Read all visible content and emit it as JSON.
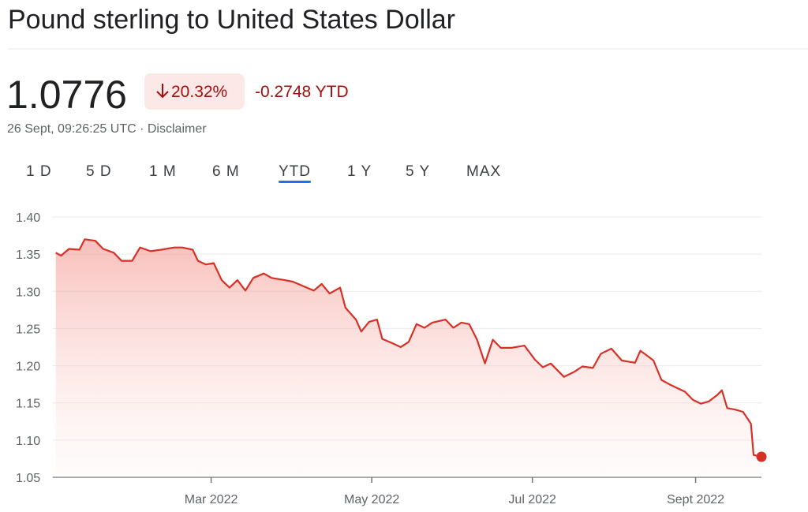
{
  "header": {
    "title": "Pound sterling to United States Dollar",
    "price": "1.0776",
    "change_percent": "20.32%",
    "change_abs": "-0.2748 YTD",
    "timestamp": "26 Sept, 09:26:25 UTC · Disclaimer"
  },
  "tabs": [
    "1 D",
    "5 D",
    "1 M",
    "6 M",
    "YTD",
    "1 Y",
    "5 Y",
    "MAX"
  ],
  "chart_data": {
    "type": "line",
    "color": "#d93025",
    "grid": true,
    "x": [
      0,
      2,
      5,
      9,
      11,
      15,
      18,
      22,
      25,
      29,
      32,
      36,
      40,
      45,
      48,
      52,
      54,
      57,
      60,
      63,
      66,
      69,
      72,
      75,
      79,
      82,
      87,
      90,
      94,
      98,
      101,
      104,
      108,
      110,
      114,
      116,
      119,
      122,
      124,
      128,
      131,
      134,
      137,
      140,
      143,
      148,
      151,
      154,
      157,
      160,
      163,
      166,
      169,
      173,
      178,
      182,
      185,
      188,
      193,
      197,
      200,
      204,
      207,
      211,
      215,
      220,
      222,
      224,
      227,
      230,
      233,
      236,
      239,
      242,
      245,
      248,
      251,
      253,
      255,
      258,
      261,
      264,
      265,
      268
    ],
    "values": [
      1.352,
      1.348,
      1.357,
      1.356,
      1.37,
      1.368,
      1.357,
      1.352,
      1.341,
      1.341,
      1.359,
      1.354,
      1.356,
      1.359,
      1.359,
      1.356,
      1.341,
      1.336,
      1.338,
      1.315,
      1.305,
      1.315,
      1.301,
      1.318,
      1.324,
      1.318,
      1.315,
      1.313,
      1.307,
      1.301,
      1.31,
      1.297,
      1.305,
      1.278,
      1.262,
      1.246,
      1.259,
      1.262,
      1.236,
      1.23,
      1.225,
      1.232,
      1.256,
      1.251,
      1.258,
      1.262,
      1.251,
      1.258,
      1.256,
      1.235,
      1.203,
      1.235,
      1.224,
      1.224,
      1.227,
      1.208,
      1.198,
      1.203,
      1.185,
      1.192,
      1.199,
      1.197,
      1.216,
      1.223,
      1.207,
      1.204,
      1.22,
      1.215,
      1.207,
      1.181,
      1.175,
      1.17,
      1.165,
      1.154,
      1.149,
      1.152,
      1.16,
      1.167,
      1.143,
      1.141,
      1.138,
      1.122,
      1.08,
      1.0776
    ],
    "xlim": [
      0,
      268
    ],
    "xticks": [
      {
        "value": 59,
        "label": "Mar 2022"
      },
      {
        "value": 120,
        "label": "May 2022"
      },
      {
        "value": 181,
        "label": "Jul 2022"
      },
      {
        "value": 243,
        "label": "Sept 2022"
      }
    ],
    "ylim": [
      1.05,
      1.4
    ],
    "yticks": [
      1.05,
      {
        "value": 1.1,
        "label": "1.10"
      },
      1.15,
      {
        "value": 1.2,
        "label": "1.20"
      },
      1.25,
      {
        "value": 1.3,
        "label": "1.30"
      },
      1.35,
      {
        "value": 1.4,
        "label": "1.40"
      }
    ]
  }
}
